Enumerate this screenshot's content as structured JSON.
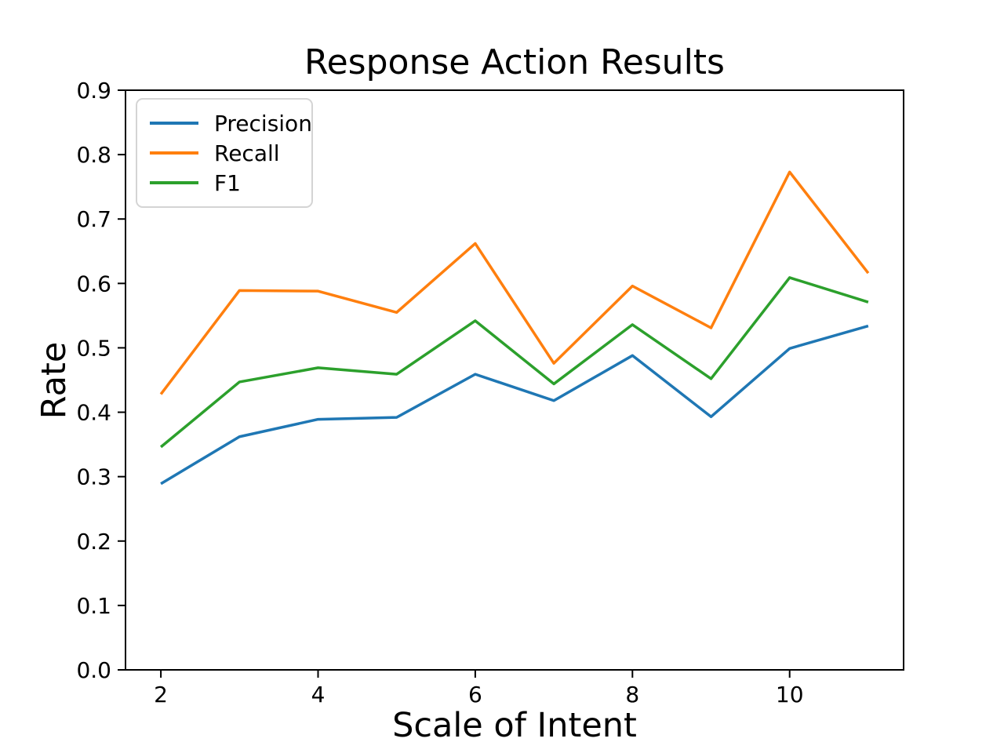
{
  "chart_data": {
    "type": "line",
    "title": "Response Action Results",
    "xlabel": "Scale of Intent",
    "ylabel": "Rate",
    "x": [
      2,
      3,
      4,
      5,
      6,
      7,
      8,
      9,
      10,
      11
    ],
    "series": [
      {
        "name": "Precision",
        "color": "#1f77b4",
        "values": [
          0.289,
          0.362,
          0.389,
          0.392,
          0.459,
          0.418,
          0.488,
          0.393,
          0.499,
          0.534
        ]
      },
      {
        "name": "Recall",
        "color": "#ff7f0e",
        "values": [
          0.428,
          0.589,
          0.588,
          0.555,
          0.662,
          0.476,
          0.596,
          0.531,
          0.773,
          0.616
        ]
      },
      {
        "name": "F1",
        "color": "#2ca02c",
        "values": [
          0.346,
          0.447,
          0.469,
          0.459,
          0.542,
          0.444,
          0.536,
          0.452,
          0.609,
          0.571
        ]
      }
    ],
    "xlim": [
      1.55,
      11.45
    ],
    "ylim": [
      0.0,
      0.9
    ],
    "x_ticks": [
      2,
      4,
      6,
      8,
      10
    ],
    "y_ticks": [
      0.0,
      0.1,
      0.2,
      0.3,
      0.4,
      0.5,
      0.6,
      0.7,
      0.8,
      0.9
    ],
    "legend_position": "upper left",
    "grid": false,
    "axis_color": "#000000",
    "background_color": "#ffffff"
  }
}
